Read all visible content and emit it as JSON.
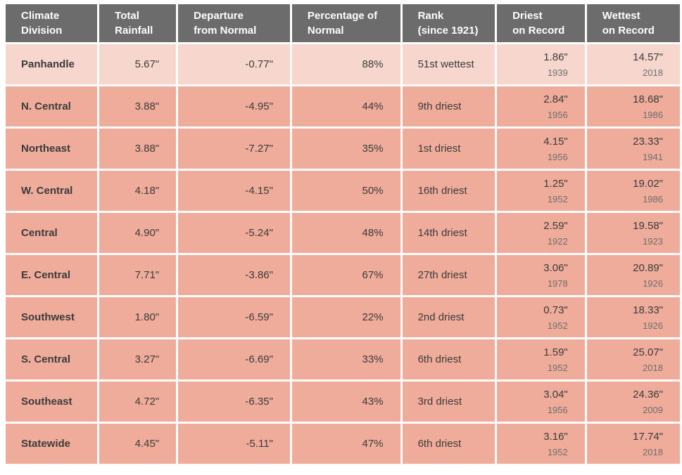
{
  "colors": {
    "header_bg": "#6c6c6c",
    "header_text": "#ffffff",
    "first_row_bg": "#f7d7cd",
    "row_bg": "#efac9b",
    "value_text": "#3b3b3b",
    "year_text": "#6e6e6e"
  },
  "chart_data": {
    "type": "table",
    "columns": [
      {
        "id": "division",
        "line1": "Climate",
        "line2": "Division",
        "align": "left"
      },
      {
        "id": "total",
        "line1": "Total",
        "line2": "Rainfall",
        "align": "left"
      },
      {
        "id": "departure",
        "line1": "Departure",
        "line2": "from Normal",
        "align": "left"
      },
      {
        "id": "pct",
        "line1": "Percentage of",
        "line2": "Normal",
        "align": "left"
      },
      {
        "id": "rank",
        "line1": "Rank",
        "line2": "(since 1921)",
        "align": "left"
      },
      {
        "id": "driest",
        "line1": "Driest",
        "line2": "on Record",
        "align": "left"
      },
      {
        "id": "wettest",
        "line1": "Wettest",
        "line2": "on Record",
        "align": "left"
      }
    ],
    "rows": [
      {
        "division": "Panhandle",
        "total": "5.67\"",
        "departure": "-0.77\"",
        "pct": "88%",
        "rank": "51st wettest",
        "driest": {
          "value": "1.86\"",
          "year": "1939"
        },
        "wettest": {
          "value": "14.57\"",
          "year": "2018"
        }
      },
      {
        "division": "N. Central",
        "total": "3.88\"",
        "departure": "-4.95\"",
        "pct": "44%",
        "rank": "9th driest",
        "driest": {
          "value": "2.84\"",
          "year": "1956"
        },
        "wettest": {
          "value": "18.68\"",
          "year": "1986"
        }
      },
      {
        "division": "Northeast",
        "total": "3.88\"",
        "departure": "-7.27\"",
        "pct": "35%",
        "rank": "1st driest",
        "driest": {
          "value": "4.15\"",
          "year": "1956"
        },
        "wettest": {
          "value": "23.33\"",
          "year": "1941"
        }
      },
      {
        "division": "W. Central",
        "total": "4.18\"",
        "departure": "-4.15\"",
        "pct": "50%",
        "rank": "16th driest",
        "driest": {
          "value": "1.25\"",
          "year": "1952"
        },
        "wettest": {
          "value": "19.02\"",
          "year": "1986"
        }
      },
      {
        "division": "Central",
        "total": "4.90\"",
        "departure": "-5.24\"",
        "pct": "48%",
        "rank": "14th driest",
        "driest": {
          "value": "2.59\"",
          "year": "1922"
        },
        "wettest": {
          "value": "19.58\"",
          "year": "1923"
        }
      },
      {
        "division": "E. Central",
        "total": "7.71\"",
        "departure": "-3.86\"",
        "pct": "67%",
        "rank": "27th driest",
        "driest": {
          "value": "3.06\"",
          "year": "1978"
        },
        "wettest": {
          "value": "20.89\"",
          "year": "1926"
        }
      },
      {
        "division": "Southwest",
        "total": "1.80\"",
        "departure": "-6.59\"",
        "pct": "22%",
        "rank": "2nd driest",
        "driest": {
          "value": "0.73\"",
          "year": "1952"
        },
        "wettest": {
          "value": "18.33\"",
          "year": "1926"
        }
      },
      {
        "division": "S. Central",
        "total": "3.27\"",
        "departure": "-6.69\"",
        "pct": "33%",
        "rank": "6th driest",
        "driest": {
          "value": "1.59\"",
          "year": "1952"
        },
        "wettest": {
          "value": "25.07\"",
          "year": "2018"
        }
      },
      {
        "division": "Southeast",
        "total": "4.72\"",
        "departure": "-6.35\"",
        "pct": "43%",
        "rank": "3rd driest",
        "driest": {
          "value": "3.04\"",
          "year": "1956"
        },
        "wettest": {
          "value": "24.36\"",
          "year": "2009"
        }
      },
      {
        "division": "Statewide",
        "total": "4.45\"",
        "departure": "-5.11\"",
        "pct": "47%",
        "rank": "6th driest",
        "driest": {
          "value": "3.16\"",
          "year": "1952"
        },
        "wettest": {
          "value": "17.74\"",
          "year": "2018"
        }
      }
    ]
  }
}
